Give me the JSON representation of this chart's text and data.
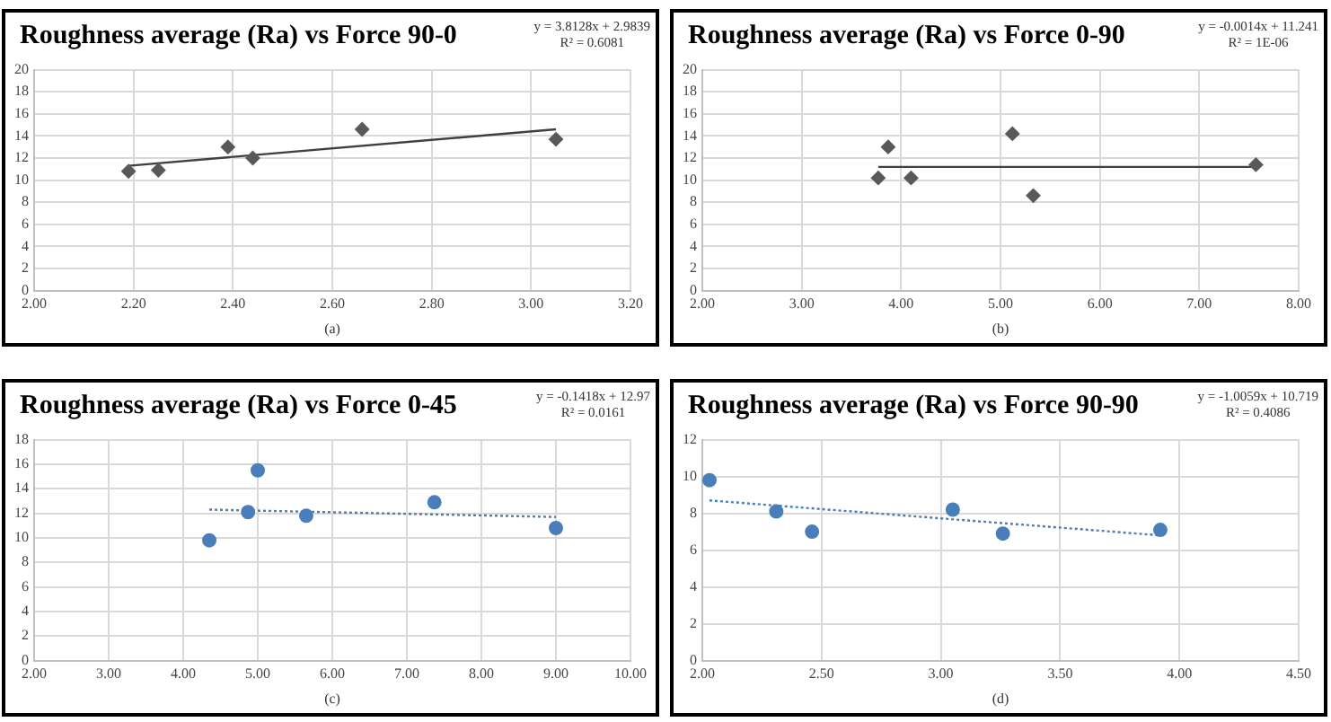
{
  "chart_data": [
    {
      "type": "scatter",
      "title": "Roughness average (Ra) vs Force 90-0",
      "xlabel": "(a)",
      "annotations": [
        "y = 3.8128x + 2.9839",
        "R² = 0.6081"
      ],
      "xlim": [
        2,
        3.2
      ],
      "xticks": [
        {
          "value": 2,
          "label": "2.00"
        },
        {
          "value": 2.2,
          "label": "2.20"
        },
        {
          "value": 2.4,
          "label": "2.40"
        },
        {
          "value": 2.6,
          "label": "2.60"
        },
        {
          "value": 2.8,
          "label": "2.80"
        },
        {
          "value": 3,
          "label": "3.00"
        },
        {
          "value": 3.2,
          "label": "3.20"
        }
      ],
      "ylim": [
        0,
        20
      ],
      "yticks": [
        0,
        2,
        4,
        6,
        8,
        10,
        12,
        14,
        16,
        18,
        20
      ],
      "grid": true,
      "series": [
        {
          "color": "#595959",
          "marker": "diamond",
          "x": [
            2.19,
            2.25,
            2.39,
            2.44,
            2.66,
            3.05
          ],
          "values": [
            10.8,
            10.9,
            13.0,
            12.0,
            14.6,
            13.7
          ]
        },
        {
          "type": "line",
          "color": "#404040",
          "marker": "none",
          "line_style": "solid",
          "x": [
            2.19,
            3.05
          ],
          "values": [
            11.3,
            14.6
          ]
        }
      ]
    },
    {
      "type": "scatter",
      "title": "Roughness average (Ra) vs Force 0-90",
      "xlabel": "(b)",
      "annotations": [
        "y = -0.0014x + 11.241",
        "R² = 1E-06"
      ],
      "xlim": [
        2,
        8
      ],
      "xticks": [
        {
          "value": 2,
          "label": "2.00"
        },
        {
          "value": 3,
          "label": "3.00"
        },
        {
          "value": 4,
          "label": "4.00"
        },
        {
          "value": 5,
          "label": "5.00"
        },
        {
          "value": 6,
          "label": "6.00"
        },
        {
          "value": 7,
          "label": "7.00"
        },
        {
          "value": 8,
          "label": "8.00"
        }
      ],
      "ylim": [
        0,
        20
      ],
      "yticks": [
        0,
        2,
        4,
        6,
        8,
        10,
        12,
        14,
        16,
        18,
        20
      ],
      "grid": true,
      "series": [
        {
          "color": "#595959",
          "marker": "diamond",
          "x": [
            3.77,
            3.87,
            4.1,
            5.12,
            5.33,
            7.57
          ],
          "values": [
            10.2,
            13.0,
            10.2,
            14.2,
            8.6,
            11.4
          ]
        },
        {
          "type": "line",
          "color": "#404040",
          "marker": "none",
          "line_style": "solid",
          "x": [
            3.77,
            7.57
          ],
          "values": [
            11.2,
            11.2
          ]
        }
      ]
    },
    {
      "type": "scatter",
      "title": "Roughness average (Ra) vs Force 0-45",
      "xlabel": "(c)",
      "annotations": [
        "y = -0.1418x + 12.97",
        "R² = 0.0161"
      ],
      "xlim": [
        2,
        10
      ],
      "xticks": [
        {
          "value": 2,
          "label": "2.00"
        },
        {
          "value": 3,
          "label": "3.00"
        },
        {
          "value": 4,
          "label": "4.00"
        },
        {
          "value": 5,
          "label": "5.00"
        },
        {
          "value": 6,
          "label": "6.00"
        },
        {
          "value": 7,
          "label": "7.00"
        },
        {
          "value": 8,
          "label": "8.00"
        },
        {
          "value": 9,
          "label": "9.00"
        },
        {
          "value": 10,
          "label": "10.00"
        }
      ],
      "ylim": [
        0,
        18
      ],
      "yticks": [
        0,
        2,
        4,
        6,
        8,
        10,
        12,
        14,
        16,
        18
      ],
      "grid": true,
      "series": [
        {
          "color": "#4a7ebb",
          "marker": "circle",
          "x": [
            4.35,
            4.87,
            5.0,
            5.65,
            7.37,
            9.0
          ],
          "values": [
            9.8,
            12.1,
            15.5,
            11.8,
            12.9,
            10.8
          ]
        },
        {
          "type": "line",
          "color": "#4a7ebb",
          "marker": "none",
          "line_style": "dotted",
          "x": [
            4.35,
            9.0
          ],
          "values": [
            12.3,
            11.7
          ]
        }
      ]
    },
    {
      "type": "scatter",
      "title": "Roughness average (Ra) vs Force 90-90",
      "xlabel": "(d)",
      "annotations": [
        "y = -1.0059x + 10.719",
        "R² = 0.4086"
      ],
      "xlim": [
        2,
        4.5
      ],
      "xticks": [
        {
          "value": 2,
          "label": "2.00"
        },
        {
          "value": 2.5,
          "label": "2.50"
        },
        {
          "value": 3,
          "label": "3.00"
        },
        {
          "value": 3.5,
          "label": "3.50"
        },
        {
          "value": 4,
          "label": "4.00"
        },
        {
          "value": 4.5,
          "label": "4.50"
        }
      ],
      "ylim": [
        0,
        12
      ],
      "yticks": [
        0,
        2,
        4,
        6,
        8,
        10,
        12
      ],
      "grid": true,
      "series": [
        {
          "color": "#4a7ebb",
          "marker": "circle",
          "x": [
            2.03,
            2.31,
            2.46,
            3.05,
            3.26,
            3.92
          ],
          "values": [
            9.8,
            8.1,
            7.0,
            8.2,
            6.9,
            7.1
          ]
        },
        {
          "type": "line",
          "color": "#4a7ebb",
          "marker": "none",
          "line_style": "dotted",
          "x": [
            2.03,
            3.92
          ],
          "values": [
            8.7,
            6.8
          ]
        }
      ]
    }
  ]
}
